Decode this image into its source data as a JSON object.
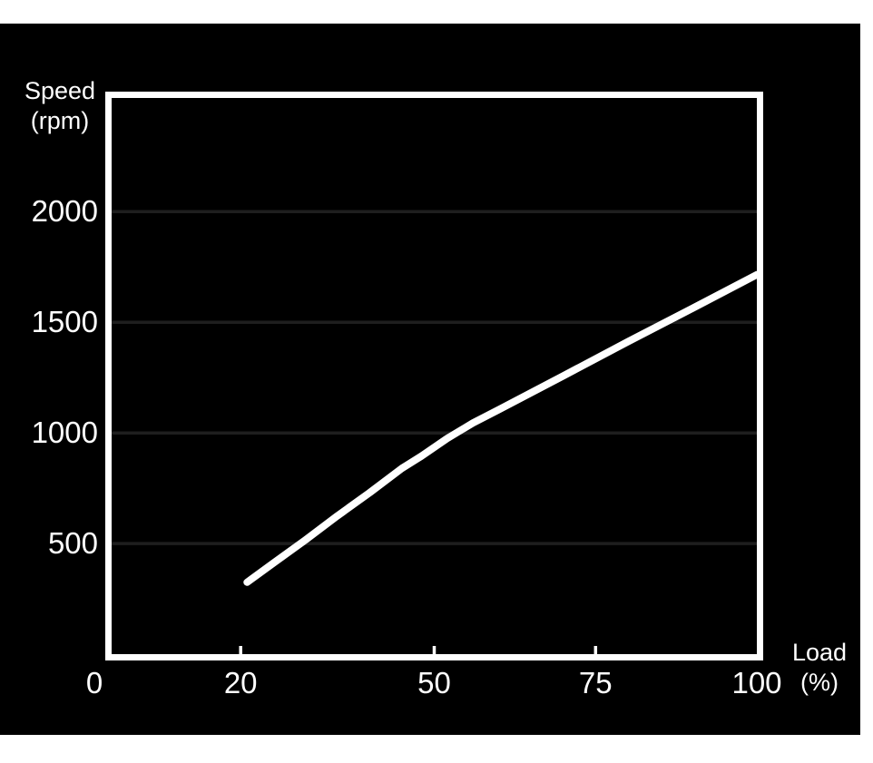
{
  "page": {
    "background": "#ffffff",
    "canvas_color": "#000000"
  },
  "chart_data": {
    "type": "line",
    "title": "",
    "xlabel": "Load (%)",
    "ylabel": "Speed (rpm)",
    "x_axis_title_lines": [
      "Load",
      "(%)"
    ],
    "y_axis_title_lines": [
      "Speed",
      "(rpm)"
    ],
    "xlim": [
      0,
      100
    ],
    "ylim": [
      0,
      2514
    ],
    "xticks": [
      0,
      20,
      50,
      75,
      100
    ],
    "yticks": [
      500,
      1000,
      1500,
      2000
    ],
    "xticks_with_marks": [
      20,
      50,
      75
    ],
    "grid": "horizontal-faint",
    "legend": "none",
    "series": [
      {
        "name": "speed-vs-load",
        "color": "#ffffff",
        "stroke_width": 8,
        "points": [
          [
            21,
            325
          ],
          [
            25,
            410
          ],
          [
            30,
            515
          ],
          [
            35,
            625
          ],
          [
            40,
            730
          ],
          [
            45,
            840
          ],
          [
            48,
            895
          ],
          [
            52,
            975
          ],
          [
            56,
            1045
          ],
          [
            60,
            1105
          ],
          [
            70,
            1258
          ],
          [
            80,
            1412
          ],
          [
            90,
            1563
          ],
          [
            100,
            1715
          ]
        ]
      }
    ],
    "colors": {
      "plot_bg": "#000000",
      "frame": "#ffffff",
      "gridline": "#1e1e1e",
      "text": "#ffffff"
    }
  }
}
